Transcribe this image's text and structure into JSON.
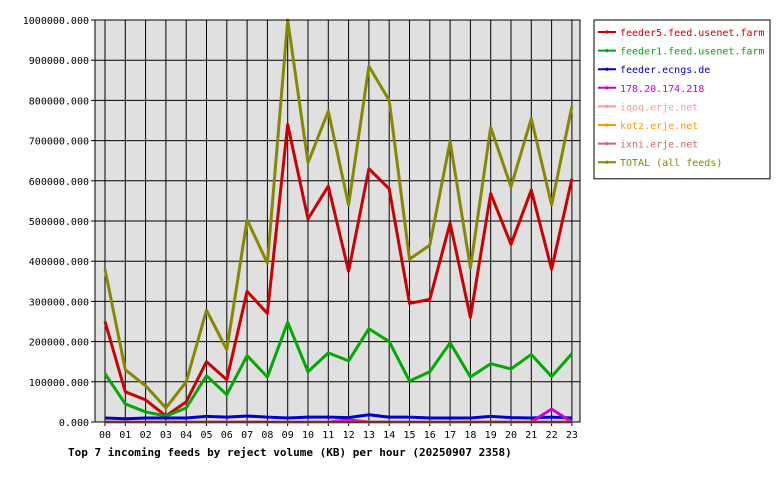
{
  "chart_data": {
    "type": "line",
    "title": "Top 7 incoming feeds by reject volume (KB) per hour (20250907 2358)",
    "xlabel": "",
    "ylabel": "",
    "x": [
      "00",
      "01",
      "02",
      "03",
      "04",
      "05",
      "06",
      "07",
      "08",
      "09",
      "10",
      "11",
      "12",
      "13",
      "14",
      "15",
      "16",
      "17",
      "18",
      "19",
      "20",
      "21",
      "22",
      "23"
    ],
    "ylim": [
      0,
      1000000
    ],
    "yticks": [
      "0.000",
      "100000.000",
      "200000.000",
      "300000.000",
      "400000.000",
      "500000.000",
      "600000.000",
      "700000.000",
      "800000.000",
      "900000.000",
      "1000000.000"
    ],
    "grid": true,
    "legend_position": "right",
    "series": [
      {
        "name": "feeder5.feed.usenet.farm",
        "color": "#cc0000",
        "values": [
          250000,
          75000,
          55000,
          15000,
          50000,
          150000,
          105000,
          325000,
          270000,
          740000,
          505000,
          587000,
          375000,
          630000,
          580000,
          295000,
          305000,
          495000,
          260000,
          568000,
          442000,
          577000,
          380000,
          605000
        ]
      },
      {
        "name": "feeder1.feed.usenet.farm",
        "color": "#00aa00",
        "values": [
          120000,
          45000,
          25000,
          15000,
          35000,
          115000,
          68000,
          165000,
          112000,
          248000,
          125000,
          172000,
          152000,
          232000,
          200000,
          102000,
          125000,
          197000,
          112000,
          145000,
          132000,
          168000,
          113000,
          170000
        ]
      },
      {
        "name": "feeder.ecngs.de",
        "color": "#0000cc",
        "values": [
          10000,
          8000,
          10000,
          10000,
          10000,
          14000,
          12000,
          15000,
          12000,
          10000,
          12000,
          12000,
          11000,
          18000,
          12000,
          12000,
          10000,
          10000,
          10000,
          14000,
          11000,
          10000,
          12000,
          10000
        ]
      },
      {
        "name": "178.20.174.218",
        "color": "#cc00cc",
        "values": [
          0,
          0,
          0,
          0,
          0,
          0,
          0,
          0,
          0,
          0,
          0,
          0,
          5000,
          0,
          0,
          0,
          0,
          0,
          0,
          0,
          0,
          0,
          32000,
          0
        ]
      },
      {
        "name": "iqoq.erje.net",
        "color": "#ff9999",
        "values": [
          0,
          0,
          0,
          0,
          0,
          0,
          0,
          0,
          0,
          0,
          0,
          0,
          0,
          0,
          0,
          0,
          0,
          0,
          0,
          0,
          0,
          0,
          0,
          0
        ]
      },
      {
        "name": "kotz.erje.net",
        "color": "#ff9900",
        "values": [
          0,
          0,
          0,
          0,
          0,
          0,
          0,
          0,
          0,
          0,
          0,
          0,
          0,
          0,
          0,
          0,
          0,
          0,
          0,
          0,
          0,
          0,
          0,
          0
        ]
      },
      {
        "name": "ixni.erje.net",
        "color": "#cc6666",
        "values": [
          0,
          0,
          0,
          0,
          0,
          0,
          0,
          0,
          0,
          0,
          0,
          0,
          0,
          0,
          0,
          0,
          0,
          0,
          0,
          0,
          0,
          0,
          0,
          0
        ]
      },
      {
        "name": "TOTAL (all feeds)",
        "color": "#888800",
        "values": [
          380000,
          130000,
          90000,
          35000,
          100000,
          278000,
          180000,
          503000,
          395000,
          1000000,
          645000,
          773000,
          540000,
          885000,
          800000,
          405000,
          440000,
          698000,
          383000,
          733000,
          585000,
          755000,
          540000,
          785000
        ]
      }
    ]
  }
}
